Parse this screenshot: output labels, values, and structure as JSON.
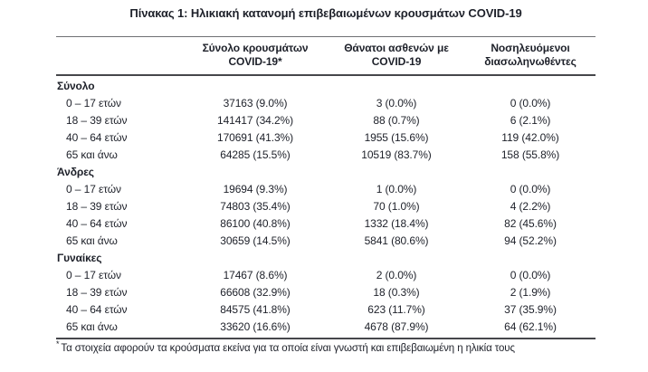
{
  "title": "Πίνακας 1: Ηλικιακή κατανομή επιβεβαιωμένων κρουσμάτων COVID-19",
  "table": {
    "columns": [
      {
        "line1": "Σύνολο κρουσμάτων",
        "line2": "COVID-19*"
      },
      {
        "line1": "Θάνατοι ασθενών με",
        "line2": "COVID-19"
      },
      {
        "line1": "Νοσηλευόμενοι",
        "line2": "διασωληνωθέντες"
      }
    ],
    "sections": [
      {
        "label": "Σύνολο",
        "rows": [
          {
            "age": "0 – 17 ετών",
            "cases": "37163 (9.0%)",
            "deaths": "3 (0.0%)",
            "intubated": "0 (0.0%)"
          },
          {
            "age": "18 – 39 ετών",
            "cases": "141417 (34.2%)",
            "deaths": "88 (0.7%)",
            "intubated": "6 (2.1%)"
          },
          {
            "age": "40 – 64 ετών",
            "cases": "170691 (41.3%)",
            "deaths": "1955 (15.6%)",
            "intubated": "119 (42.0%)"
          },
          {
            "age": "65 και άνω",
            "cases": "64285 (15.5%)",
            "deaths": "10519 (83.7%)",
            "intubated": "158 (55.8%)"
          }
        ]
      },
      {
        "label": "Άνδρες",
        "rows": [
          {
            "age": "0 – 17 ετών",
            "cases": "19694 (9.3%)",
            "deaths": "1 (0.0%)",
            "intubated": "0 (0.0%)"
          },
          {
            "age": "18 – 39 ετών",
            "cases": "74803 (35.4%)",
            "deaths": "70 (1.0%)",
            "intubated": "4 (2.2%)"
          },
          {
            "age": "40 – 64 ετών",
            "cases": "86100 (40.8%)",
            "deaths": "1332 (18.4%)",
            "intubated": "82 (45.6%)"
          },
          {
            "age": "65 και άνω",
            "cases": "30659 (14.5%)",
            "deaths": "5841 (80.6%)",
            "intubated": "94 (52.2%)"
          }
        ]
      },
      {
        "label": "Γυναίκες",
        "rows": [
          {
            "age": "0 – 17 ετών",
            "cases": "17467 (8.6%)",
            "deaths": "2 (0.0%)",
            "intubated": "0 (0.0%)"
          },
          {
            "age": "18 – 39 ετών",
            "cases": "66608 (32.9%)",
            "deaths": "18 (0.3%)",
            "intubated": "2 (1.9%)"
          },
          {
            "age": "40 – 64 ετών",
            "cases": "84575 (41.8%)",
            "deaths": "623 (11.7%)",
            "intubated": "37 (35.9%)"
          },
          {
            "age": "65 και άνω",
            "cases": "33620 (16.6%)",
            "deaths": "4678 (87.9%)",
            "intubated": "64 (62.1%)"
          }
        ]
      }
    ]
  },
  "footnote": {
    "marker": "*",
    "text": "Τα στοιχεία αφορούν τα κρούσματα εκείνα για τα οποία είναι γνωστή και επιβεβαιωμένη η ηλικία τους"
  },
  "colors": {
    "text": "#1d2029",
    "rule_light": "#6f7074",
    "rule_heavy": "#46474b",
    "background": "#ffffff"
  }
}
